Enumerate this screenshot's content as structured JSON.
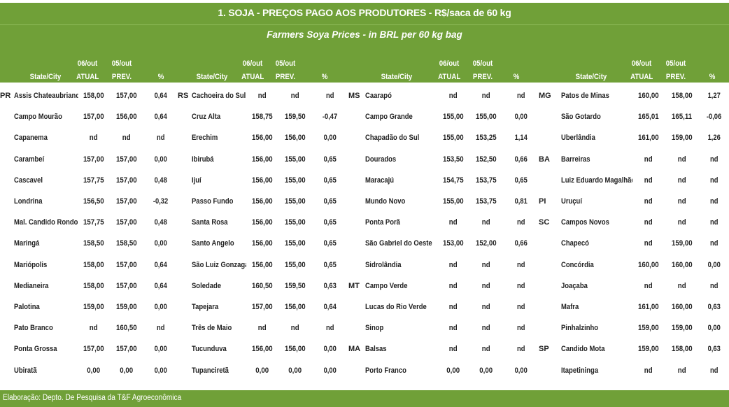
{
  "title": "1. SOJA - PREÇOS PAGO AOS PRODUTORES - R$/saca de 60 kg",
  "subtitle": "Farmers Soya Prices - in BRL per 60 kg bag",
  "header": {
    "date_current": "06/out",
    "date_previous": "05/out",
    "state_city": "State/City",
    "atual": "ATUAL",
    "prev": "PREV.",
    "pct": "%"
  },
  "footer": "Elaboração: Depto. De Pesquisa da T&F Agroeconômica",
  "rows": [
    [
      [
        "PR",
        "Assis Chateaubriand",
        "158,00",
        "157,00",
        "0,64"
      ],
      [
        "RS",
        "Cachoeira do Sul",
        "nd",
        "nd",
        "nd"
      ],
      [
        "MS",
        "Caarapó",
        "nd",
        "nd",
        "nd"
      ],
      [
        "MG",
        "Patos de Minas",
        "160,00",
        "158,00",
        "1,27"
      ]
    ],
    [
      [
        "",
        "Campo Mourão",
        "157,00",
        "156,00",
        "0,64"
      ],
      [
        "",
        "Cruz Alta",
        "158,75",
        "159,50",
        "-0,47"
      ],
      [
        "",
        "Campo Grande",
        "155,00",
        "155,00",
        "0,00"
      ],
      [
        "",
        "São Gotardo",
        "165,01",
        "165,11",
        "-0,06"
      ]
    ],
    [
      [
        "",
        "Capanema",
        "nd",
        "nd",
        "nd"
      ],
      [
        "",
        "Erechim",
        "156,00",
        "156,00",
        "0,00"
      ],
      [
        "",
        "Chapadão do Sul",
        "155,00",
        "153,25",
        "1,14"
      ],
      [
        "",
        "Uberlândia",
        "161,00",
        "159,00",
        "1,26"
      ]
    ],
    [
      [
        "",
        "Carambeí",
        "157,00",
        "157,00",
        "0,00"
      ],
      [
        "",
        "Ibirubá",
        "156,00",
        "155,00",
        "0,65"
      ],
      [
        "",
        "Dourados",
        "153,50",
        "152,50",
        "0,66"
      ],
      [
        "BA",
        "Barreiras",
        "nd",
        "nd",
        "nd"
      ]
    ],
    [
      [
        "",
        "Cascavel",
        "157,75",
        "157,00",
        "0,48"
      ],
      [
        "",
        "Ijuí",
        "156,00",
        "155,00",
        "0,65"
      ],
      [
        "",
        "Maracajú",
        "154,75",
        "153,75",
        "0,65"
      ],
      [
        "",
        "Luiz Eduardo Magalhães",
        "nd",
        "nd",
        "nd"
      ]
    ],
    [
      [
        "",
        "Londrina",
        "156,50",
        "157,00",
        "-0,32"
      ],
      [
        "",
        "Passo Fundo",
        "156,00",
        "155,00",
        "0,65"
      ],
      [
        "",
        "Mundo Novo",
        "155,00",
        "153,75",
        "0,81"
      ],
      [
        "PI",
        "Uruçuí",
        "nd",
        "nd",
        "nd"
      ]
    ],
    [
      [
        "",
        "Mal. Candido Rondon",
        "157,75",
        "157,00",
        "0,48"
      ],
      [
        "",
        "Santa Rosa",
        "156,00",
        "155,00",
        "0,65"
      ],
      [
        "",
        "Ponta Porã",
        "nd",
        "nd",
        "nd"
      ],
      [
        "SC",
        "Campos Novos",
        "nd",
        "nd",
        "nd"
      ]
    ],
    [
      [
        "",
        "Maringá",
        "158,50",
        "158,50",
        "0,00"
      ],
      [
        "",
        "Santo Angelo",
        "156,00",
        "155,00",
        "0,65"
      ],
      [
        "",
        "São Gabriel do Oeste",
        "153,00",
        "152,00",
        "0,66"
      ],
      [
        "",
        "Chapecó",
        "nd",
        "159,00",
        "nd"
      ]
    ],
    [
      [
        "",
        "Mariópolis",
        "158,00",
        "157,00",
        "0,64"
      ],
      [
        "",
        "São Luiz Gonzaga",
        "156,00",
        "155,00",
        "0,65"
      ],
      [
        "",
        "Sidrolândia",
        "nd",
        "nd",
        "nd"
      ],
      [
        "",
        "Concórdia",
        "160,00",
        "160,00",
        "0,00"
      ]
    ],
    [
      [
        "",
        "Medianeira",
        "158,00",
        "157,00",
        "0,64"
      ],
      [
        "",
        "Soledade",
        "160,50",
        "159,50",
        "0,63"
      ],
      [
        "MT",
        "Campo Verde",
        "nd",
        "nd",
        "nd"
      ],
      [
        "",
        "Joaçaba",
        "nd",
        "nd",
        "nd"
      ]
    ],
    [
      [
        "",
        "Palotina",
        "159,00",
        "159,00",
        "0,00"
      ],
      [
        "",
        "Tapejara",
        "157,00",
        "156,00",
        "0,64"
      ],
      [
        "",
        "Lucas do Rio Verde",
        "nd",
        "nd",
        "nd"
      ],
      [
        "",
        "Mafra",
        "161,00",
        "160,00",
        "0,63"
      ]
    ],
    [
      [
        "",
        "Pato Branco",
        "nd",
        "160,50",
        "nd"
      ],
      [
        "",
        "Três de Maio",
        "nd",
        "nd",
        "nd"
      ],
      [
        "",
        "Sinop",
        "nd",
        "nd",
        "nd"
      ],
      [
        "",
        "Pinhalzinho",
        "159,00",
        "159,00",
        "0,00"
      ]
    ],
    [
      [
        "",
        "Ponta Grossa",
        "157,00",
        "157,00",
        "0,00"
      ],
      [
        "",
        "Tucunduva",
        "156,00",
        "156,00",
        "0,00"
      ],
      [
        "MA",
        "Balsas",
        "nd",
        "nd",
        "nd"
      ],
      [
        "SP",
        "Candido Mota",
        "159,00",
        "158,00",
        "0,63"
      ]
    ],
    [
      [
        "",
        "Ubiratã",
        "0,00",
        "0,00",
        "0,00"
      ],
      [
        "",
        "Tupanciretã",
        "0,00",
        "0,00",
        "0,00"
      ],
      [
        "",
        "Porto Franco",
        "0,00",
        "0,00",
        "0,00"
      ],
      [
        "",
        "Itapetininga",
        "nd",
        "nd",
        "nd"
      ]
    ]
  ]
}
